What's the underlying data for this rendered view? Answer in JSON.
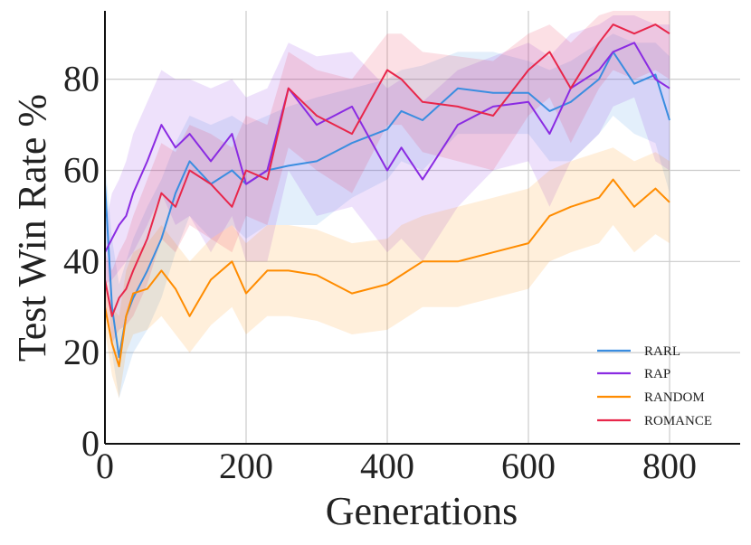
{
  "chart_data": {
    "type": "line",
    "title": "",
    "xlabel": "Generations",
    "ylabel": "Test Win Rate %",
    "xlim": [
      0,
      900
    ],
    "ylim": [
      0,
      95
    ],
    "xticks": [
      0,
      200,
      400,
      600,
      800
    ],
    "yticks": [
      0,
      20,
      40,
      60,
      80
    ],
    "xtick_labels": [
      "0",
      "200",
      "400",
      "600",
      "800"
    ],
    "ytick_labels": [
      "0",
      "20",
      "40",
      "60",
      "80"
    ],
    "grid": true,
    "legend_position": "bottom-right",
    "x": [
      0,
      10,
      20,
      30,
      40,
      60,
      80,
      100,
      120,
      150,
      180,
      200,
      230,
      260,
      300,
      350,
      400,
      420,
      450,
      500,
      550,
      600,
      630,
      660,
      700,
      720,
      750,
      780,
      800
    ],
    "series": [
      {
        "name": "RARL",
        "color": "#3a8de0",
        "values": [
          57,
          30,
          19,
          28,
          32,
          38,
          45,
          55,
          62,
          57,
          60,
          57,
          60,
          61,
          62,
          66,
          69,
          73,
          71,
          78,
          77,
          77,
          73,
          75,
          80,
          86,
          79,
          81,
          71
        ],
        "upper": [
          62,
          45,
          35,
          40,
          45,
          52,
          58,
          66,
          72,
          70,
          72,
          70,
          72,
          74,
          76,
          78,
          80,
          82,
          83,
          86,
          86,
          84,
          82,
          84,
          88,
          90,
          88,
          88,
          85
        ],
        "lower": [
          50,
          20,
          10,
          15,
          20,
          25,
          32,
          42,
          50,
          45,
          48,
          45,
          48,
          48,
          48,
          54,
          58,
          62,
          60,
          68,
          68,
          68,
          62,
          62,
          68,
          72,
          68,
          66,
          55
        ]
      },
      {
        "name": "RAP",
        "color": "#8a2be2",
        "values": [
          42,
          45,
          48,
          50,
          55,
          62,
          70,
          65,
          68,
          62,
          68,
          57,
          60,
          78,
          70,
          74,
          60,
          65,
          58,
          70,
          74,
          75,
          68,
          78,
          82,
          86,
          88,
          80,
          78
        ],
        "upper": [
          48,
          55,
          58,
          62,
          68,
          75,
          82,
          80,
          80,
          78,
          80,
          76,
          78,
          88,
          85,
          86,
          78,
          80,
          75,
          82,
          85,
          88,
          85,
          90,
          92,
          94,
          94,
          92,
          92
        ],
        "lower": [
          35,
          36,
          38,
          40,
          42,
          48,
          55,
          48,
          50,
          42,
          50,
          40,
          40,
          60,
          50,
          52,
          42,
          45,
          40,
          52,
          60,
          62,
          52,
          62,
          68,
          74,
          76,
          62,
          60
        ]
      },
      {
        "name": "RANDOM",
        "color": "#ff8c00",
        "values": [
          30,
          22,
          17,
          28,
          33,
          34,
          38,
          34,
          28,
          36,
          40,
          33,
          38,
          38,
          37,
          33,
          35,
          37,
          40,
          40,
          42,
          44,
          50,
          52,
          54,
          58,
          52,
          56,
          53
        ],
        "upper": [
          35,
          30,
          28,
          38,
          42,
          44,
          48,
          44,
          40,
          45,
          48,
          44,
          48,
          48,
          47,
          44,
          45,
          48,
          50,
          52,
          54,
          56,
          60,
          62,
          64,
          65,
          62,
          64,
          62
        ],
        "lower": [
          25,
          15,
          10,
          20,
          24,
          25,
          28,
          24,
          20,
          26,
          30,
          24,
          28,
          28,
          27,
          24,
          25,
          27,
          30,
          30,
          32,
          34,
          40,
          42,
          44,
          48,
          42,
          46,
          44
        ]
      },
      {
        "name": "ROMANCE",
        "color": "#e8264a",
        "values": [
          36,
          28,
          32,
          34,
          38,
          45,
          55,
          52,
          60,
          57,
          52,
          60,
          58,
          78,
          72,
          68,
          82,
          80,
          75,
          74,
          72,
          82,
          86,
          78,
          88,
          92,
          90,
          92,
          90
        ],
        "upper": [
          42,
          38,
          42,
          45,
          50,
          58,
          66,
          64,
          70,
          68,
          65,
          72,
          70,
          86,
          82,
          80,
          90,
          90,
          86,
          85,
          84,
          90,
          92,
          88,
          94,
          95,
          95,
          95,
          95
        ],
        "lower": [
          30,
          22,
          25,
          26,
          28,
          35,
          45,
          42,
          48,
          45,
          42,
          50,
          48,
          65,
          60,
          55,
          70,
          70,
          64,
          62,
          60,
          72,
          76,
          66,
          78,
          82,
          80,
          82,
          80
        ]
      }
    ]
  }
}
